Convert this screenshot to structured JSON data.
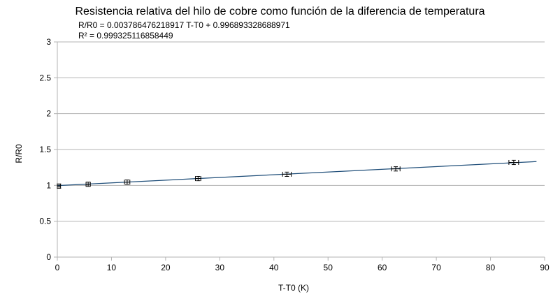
{
  "chart_data": {
    "type": "scatter",
    "title": "Resistencia relativa del hilo de cobre como función de la diferencia de temperatura",
    "xlabel": "T-T0 (K)",
    "ylabel": "R/R0",
    "xlim": [
      0,
      90
    ],
    "ylim": [
      0,
      3
    ],
    "x_ticks": [
      "0",
      "10",
      "20",
      "30",
      "40",
      "50",
      "60",
      "70",
      "80",
      "90"
    ],
    "y_ticks": [
      "0",
      "0.5",
      "1",
      "1.5",
      "2",
      "2.5",
      "3"
    ],
    "grid": true,
    "series": [
      {
        "points": [
          {
            "x": 0.3,
            "y": 0.99,
            "xerr": 0.3,
            "yerr": 0.03
          },
          {
            "x": 5.7,
            "y": 1.015,
            "xerr": 0.4,
            "yerr": 0.03
          },
          {
            "x": 12.9,
            "y": 1.045,
            "xerr": 0.5,
            "yerr": 0.03
          },
          {
            "x": 26.0,
            "y": 1.095,
            "xerr": 0.5,
            "yerr": 0.03
          },
          {
            "x": 42.4,
            "y": 1.155,
            "xerr": 0.8,
            "yerr": 0.03
          },
          {
            "x": 62.5,
            "y": 1.23,
            "xerr": 0.8,
            "yerr": 0.03
          },
          {
            "x": 84.3,
            "y": 1.32,
            "xerr": 0.9,
            "yerr": 0.03
          }
        ],
        "color": "#000000"
      }
    ],
    "trendline": {
      "type": "linear",
      "slope": 0.003786476218917,
      "intercept": 0.996893328688971,
      "x_range": [
        0,
        88.5
      ],
      "color": "#1f4e79",
      "equation_text": "R/R0 = 0.003786476218917 T-T0 + 0.996893328688971",
      "r2_text": "R² = 0.999325116858449"
    }
  }
}
